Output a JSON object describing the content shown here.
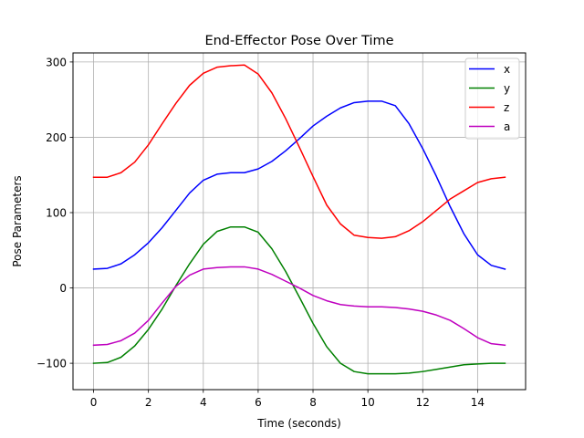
{
  "chart_data": {
    "type": "line",
    "title": "End-Effector Pose Over Time",
    "xlabel": "Time (seconds)",
    "ylabel": "Pose Parameters",
    "xlim": [
      -0.75,
      15.75
    ],
    "ylim": [
      -135,
      312
    ],
    "xticks": [
      0,
      2,
      4,
      6,
      8,
      10,
      12,
      14
    ],
    "xtick_labels": [
      "0",
      "2",
      "4",
      "6",
      "8",
      "10",
      "12",
      "14"
    ],
    "yticks": [
      -100,
      0,
      100,
      200,
      300
    ],
    "ytick_labels": [
      "−100",
      "0",
      "100",
      "200",
      "300"
    ],
    "grid": true,
    "legend_position": "top-right",
    "series": [
      {
        "name": "x",
        "color": "#0000ff",
        "x": [
          0,
          0.5,
          1,
          1.5,
          2,
          2.5,
          3,
          3.5,
          4,
          4.5,
          5,
          5.5,
          6,
          6.5,
          7,
          7.5,
          8,
          8.5,
          9,
          9.5,
          10,
          10.5,
          11,
          11.5,
          12,
          12.5,
          13,
          13.5,
          14,
          14.5,
          15
        ],
        "values": [
          25,
          26,
          32,
          44,
          60,
          80,
          103,
          126,
          143,
          151,
          153,
          153,
          158,
          168,
          182,
          198,
          215,
          228,
          239,
          246,
          248,
          248,
          242,
          218,
          185,
          148,
          108,
          72,
          44,
          30,
          25
        ]
      },
      {
        "name": "y",
        "color": "#008000",
        "x": [
          0,
          0.5,
          1,
          1.5,
          2,
          2.5,
          3,
          3.5,
          4,
          4.5,
          5,
          5.5,
          6,
          6.5,
          7,
          7.5,
          8,
          8.5,
          9,
          9.5,
          10,
          10.5,
          11,
          11.5,
          12,
          12.5,
          13,
          13.5,
          14,
          14.5,
          15
        ],
        "values": [
          -100,
          -99,
          -92,
          -77,
          -55,
          -28,
          3,
          32,
          58,
          75,
          81,
          81,
          74,
          52,
          22,
          -12,
          -47,
          -78,
          -100,
          -111,
          -114,
          -114,
          -114,
          -113,
          -111,
          -108,
          -105,
          -102,
          -101,
          -100,
          -100
        ]
      },
      {
        "name": "z",
        "color": "#ff0000",
        "x": [
          0,
          0.5,
          1,
          1.5,
          2,
          2.5,
          3,
          3.5,
          4,
          4.5,
          5,
          5.5,
          6,
          6.5,
          7,
          7.5,
          8,
          8.5,
          9,
          9.5,
          10,
          10.5,
          11,
          11.5,
          12,
          12.5,
          13,
          13.5,
          14,
          14.5,
          15
        ],
        "values": [
          147,
          147,
          153,
          167,
          190,
          218,
          245,
          269,
          285,
          293,
          295,
          296,
          284,
          259,
          225,
          187,
          148,
          110,
          85,
          70,
          67,
          66,
          68,
          76,
          88,
          103,
          118,
          129,
          140,
          145,
          147
        ]
      },
      {
        "name": "a",
        "color": "#bf00bf",
        "x": [
          0,
          0.5,
          1,
          1.5,
          2,
          2.5,
          3,
          3.5,
          4,
          4.5,
          5,
          5.5,
          6,
          6.5,
          7,
          7.5,
          8,
          8.5,
          9,
          9.5,
          10,
          10.5,
          11,
          11.5,
          12,
          12.5,
          13,
          13.5,
          14,
          14.5,
          15
        ],
        "values": [
          -76,
          -75,
          -70,
          -60,
          -43,
          -20,
          2,
          17,
          25,
          27,
          28,
          28,
          25,
          18,
          9,
          0,
          -10,
          -17,
          -22,
          -24,
          -25,
          -25,
          -26,
          -28,
          -31,
          -36,
          -43,
          -54,
          -66,
          -74,
          -76
        ]
      }
    ]
  }
}
